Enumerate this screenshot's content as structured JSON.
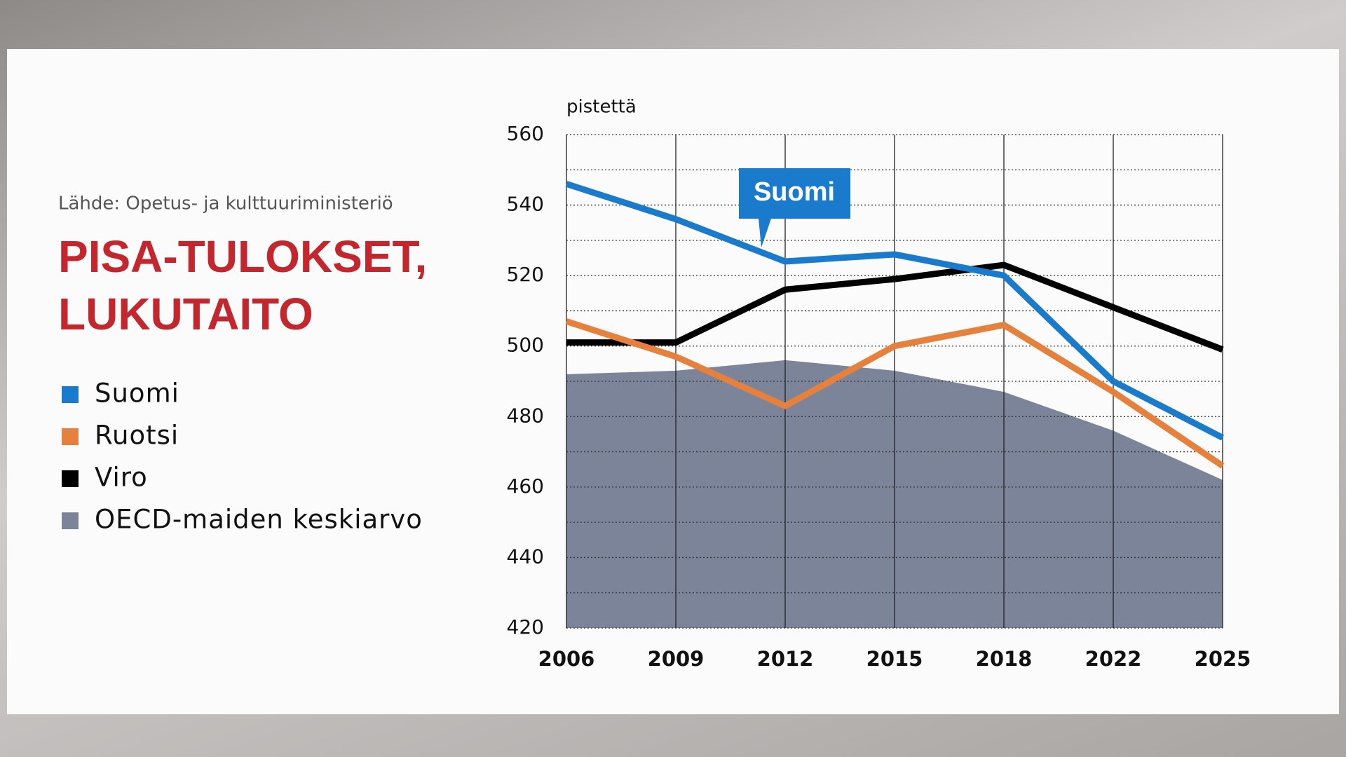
{
  "chart_data": {
    "type": "line",
    "source": "Lähde: Opetus- ja kulttuuriministeriö",
    "title": [
      "PISA-TULOKSET,",
      "LUKUTAITO"
    ],
    "ylabel": "pistettä",
    "annotation": "Suomi",
    "categories": [
      "2006",
      "2009",
      "2012",
      "2015",
      "2018",
      "2022",
      "2025"
    ],
    "series": [
      {
        "name": "Suomi",
        "color": "#1a7acc",
        "style": "line",
        "values": [
          546,
          536,
          524,
          526,
          520,
          490,
          474
        ]
      },
      {
        "name": "Ruotsi",
        "color": "#e5813d",
        "style": "line",
        "values": [
          507,
          497,
          483,
          500,
          506,
          487,
          466
        ]
      },
      {
        "name": "Viro",
        "color": "#000000",
        "style": "line",
        "values": [
          501,
          501,
          516,
          519,
          523,
          511,
          499
        ]
      },
      {
        "name": "OECD-maiden keskiarvo",
        "color": "#7b8499",
        "style": "area",
        "values": [
          492,
          493,
          496,
          493,
          487,
          476,
          462
        ]
      }
    ],
    "ylim": [
      420,
      560
    ],
    "yticks": [
      420,
      440,
      460,
      480,
      500,
      520,
      540,
      560
    ],
    "minor_grid": [
      430,
      450,
      470,
      490,
      510,
      530,
      550
    ],
    "grid": true
  }
}
